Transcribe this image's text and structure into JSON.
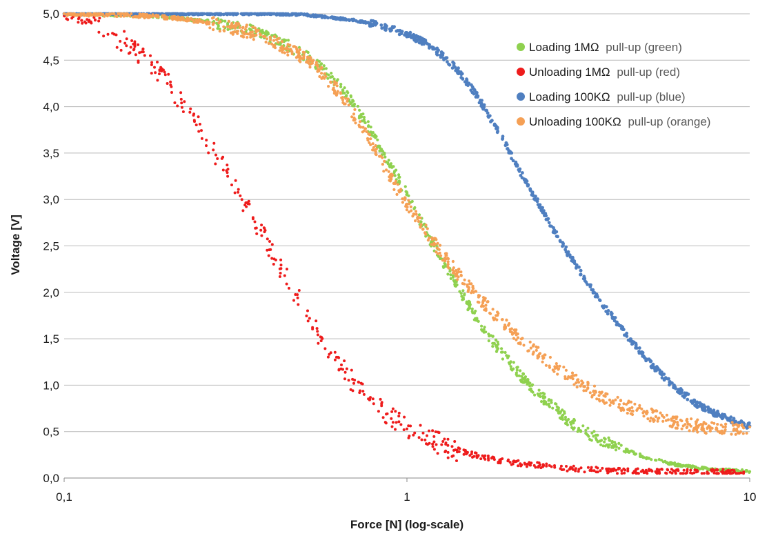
{
  "chart_data": {
    "type": "scatter",
    "title": "",
    "xlabel": "Force [N] (log-scale)",
    "ylabel": "Voltage [V]",
    "x_scale": "log",
    "xlim": [
      0.1,
      10
    ],
    "ylim": [
      0,
      5
    ],
    "x_ticks": [
      0.1,
      1,
      10
    ],
    "x_tick_labels": [
      "0,1",
      "1",
      "10"
    ],
    "y_ticks": [
      0,
      0.5,
      1,
      1.5,
      2,
      2.5,
      3,
      3.5,
      4,
      4.5,
      5
    ],
    "y_tick_labels": [
      "0,0",
      "0,5",
      "1,0",
      "1,5",
      "2,0",
      "2,5",
      "3,0",
      "3,5",
      "4,0",
      "4,5",
      "5,0"
    ],
    "grid": "horizontal",
    "legend_position": "top-right",
    "series": [
      {
        "name_main": "Loading 1MΩ",
        "name_detail": "pull-up (green)",
        "color": "#8fd14f",
        "points": [
          [
            0.1,
            5.0
          ],
          [
            0.15,
            4.99
          ],
          [
            0.2,
            4.97
          ],
          [
            0.25,
            4.93
          ],
          [
            0.3,
            4.88
          ],
          [
            0.35,
            4.82
          ],
          [
            0.4,
            4.74
          ],
          [
            0.45,
            4.66
          ],
          [
            0.5,
            4.56
          ],
          [
            0.55,
            4.45
          ],
          [
            0.6,
            4.32
          ],
          [
            0.65,
            4.18
          ],
          [
            0.7,
            4.02
          ],
          [
            0.75,
            3.86
          ],
          [
            0.8,
            3.68
          ],
          [
            0.85,
            3.52
          ],
          [
            0.9,
            3.36
          ],
          [
            0.95,
            3.2
          ],
          [
            1.0,
            3.05
          ],
          [
            1.05,
            2.9
          ],
          [
            1.1,
            2.76
          ],
          [
            1.15,
            2.62
          ],
          [
            1.2,
            2.5
          ],
          [
            1.3,
            2.28
          ],
          [
            1.4,
            2.08
          ],
          [
            1.5,
            1.88
          ],
          [
            1.6,
            1.72
          ],
          [
            1.8,
            1.45
          ],
          [
            2.0,
            1.24
          ],
          [
            2.2,
            1.06
          ],
          [
            2.5,
            0.86
          ],
          [
            2.8,
            0.7
          ],
          [
            3.0,
            0.6
          ],
          [
            3.5,
            0.45
          ],
          [
            4.0,
            0.35
          ],
          [
            5.0,
            0.22
          ],
          [
            6.0,
            0.15
          ],
          [
            7.0,
            0.11
          ],
          [
            8.0,
            0.09
          ],
          [
            9.0,
            0.08
          ],
          [
            10.0,
            0.07
          ]
        ]
      },
      {
        "name_main": "Unloading 1MΩ",
        "name_detail": "pull-up (red)",
        "color": "#ee1c1c",
        "points": [
          [
            0.1,
            4.98
          ],
          [
            0.12,
            4.9
          ],
          [
            0.14,
            4.78
          ],
          [
            0.16,
            4.62
          ],
          [
            0.18,
            4.45
          ],
          [
            0.2,
            4.25
          ],
          [
            0.22,
            4.04
          ],
          [
            0.24,
            3.84
          ],
          [
            0.26,
            3.64
          ],
          [
            0.28,
            3.44
          ],
          [
            0.3,
            3.25
          ],
          [
            0.33,
            3.0
          ],
          [
            0.36,
            2.76
          ],
          [
            0.4,
            2.46
          ],
          [
            0.44,
            2.18
          ],
          [
            0.48,
            1.94
          ],
          [
            0.52,
            1.72
          ],
          [
            0.56,
            1.52
          ],
          [
            0.6,
            1.35
          ],
          [
            0.65,
            1.17
          ],
          [
            0.7,
            1.02
          ],
          [
            0.75,
            0.9
          ],
          [
            0.8,
            0.8
          ],
          [
            0.9,
            0.64
          ],
          [
            1.0,
            0.53
          ],
          [
            1.2,
            0.39
          ],
          [
            1.4,
            0.3
          ],
          [
            1.6,
            0.24
          ],
          [
            1.8,
            0.2
          ],
          [
            2.0,
            0.17
          ],
          [
            2.5,
            0.13
          ],
          [
            3.0,
            0.1
          ],
          [
            4.0,
            0.08
          ],
          [
            5.0,
            0.07
          ],
          [
            7.0,
            0.065
          ],
          [
            9.6,
            0.065
          ]
        ]
      },
      {
        "name_main": "Loading 100KΩ",
        "name_detail": "pull-up (blue)",
        "color": "#4f7fc0",
        "points": [
          [
            0.1,
            5.0
          ],
          [
            0.2,
            5.0
          ],
          [
            0.3,
            5.0
          ],
          [
            0.4,
            5.0
          ],
          [
            0.5,
            4.99
          ],
          [
            0.6,
            4.96
          ],
          [
            0.7,
            4.93
          ],
          [
            0.8,
            4.89
          ],
          [
            0.9,
            4.84
          ],
          [
            1.0,
            4.78
          ],
          [
            1.1,
            4.71
          ],
          [
            1.2,
            4.62
          ],
          [
            1.3,
            4.52
          ],
          [
            1.4,
            4.4
          ],
          [
            1.5,
            4.26
          ],
          [
            1.6,
            4.12
          ],
          [
            1.7,
            3.96
          ],
          [
            1.8,
            3.8
          ],
          [
            1.9,
            3.65
          ],
          [
            2.0,
            3.5
          ],
          [
            2.1,
            3.36
          ],
          [
            2.2,
            3.22
          ],
          [
            2.4,
            2.98
          ],
          [
            2.6,
            2.75
          ],
          [
            2.8,
            2.55
          ],
          [
            3.0,
            2.38
          ],
          [
            3.3,
            2.15
          ],
          [
            3.6,
            1.95
          ],
          [
            4.0,
            1.72
          ],
          [
            4.5,
            1.48
          ],
          [
            5.0,
            1.28
          ],
          [
            5.5,
            1.12
          ],
          [
            6.0,
            0.99
          ],
          [
            6.5,
            0.89
          ],
          [
            7.0,
            0.8
          ],
          [
            8.0,
            0.69
          ],
          [
            9.0,
            0.61
          ],
          [
            10.0,
            0.56
          ]
        ]
      },
      {
        "name_main": "Unloading 100KΩ",
        "name_detail": "pull-up (orange)",
        "color": "#f5a055",
        "points": [
          [
            0.1,
            5.0
          ],
          [
            0.15,
            4.99
          ],
          [
            0.2,
            4.96
          ],
          [
            0.25,
            4.92
          ],
          [
            0.3,
            4.86
          ],
          [
            0.35,
            4.8
          ],
          [
            0.4,
            4.72
          ],
          [
            0.45,
            4.62
          ],
          [
            0.5,
            4.52
          ],
          [
            0.55,
            4.4
          ],
          [
            0.6,
            4.26
          ],
          [
            0.65,
            4.1
          ],
          [
            0.7,
            3.92
          ],
          [
            0.75,
            3.74
          ],
          [
            0.8,
            3.56
          ],
          [
            0.85,
            3.38
          ],
          [
            0.9,
            3.22
          ],
          [
            0.95,
            3.08
          ],
          [
            1.0,
            2.95
          ],
          [
            1.05,
            2.84
          ],
          [
            1.1,
            2.73
          ],
          [
            1.2,
            2.53
          ],
          [
            1.3,
            2.36
          ],
          [
            1.4,
            2.21
          ],
          [
            1.5,
            2.08
          ],
          [
            1.7,
            1.86
          ],
          [
            2.0,
            1.6
          ],
          [
            2.3,
            1.4
          ],
          [
            2.7,
            1.2
          ],
          [
            3.0,
            1.08
          ],
          [
            3.5,
            0.93
          ],
          [
            4.0,
            0.82
          ],
          [
            5.0,
            0.69
          ],
          [
            6.0,
            0.61
          ],
          [
            7.0,
            0.56
          ],
          [
            8.0,
            0.54
          ],
          [
            9.0,
            0.53
          ],
          [
            10.0,
            0.55
          ]
        ]
      }
    ]
  }
}
